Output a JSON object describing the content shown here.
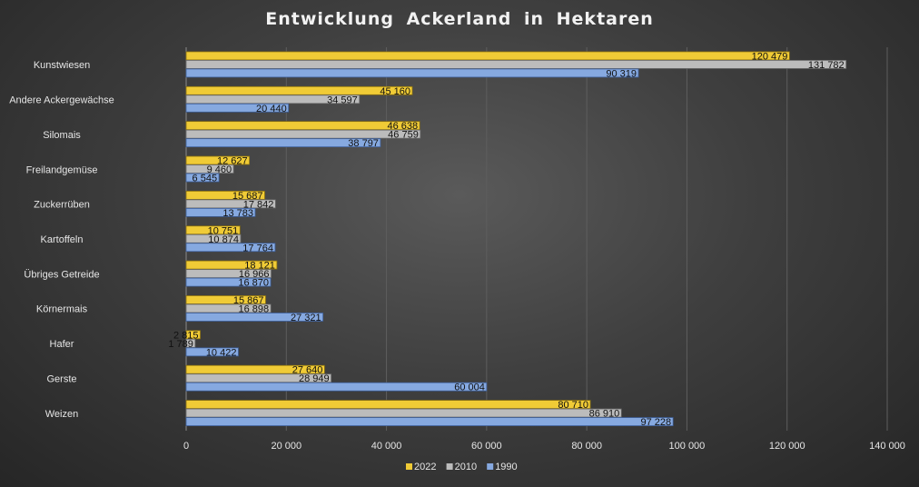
{
  "chart_data": {
    "type": "bar",
    "orientation": "horizontal",
    "title": "Entwicklung Ackerland in Hektaren",
    "xlabel": "",
    "ylabel": "",
    "xlim": [
      0,
      140000
    ],
    "x_ticks": [
      0,
      20000,
      40000,
      60000,
      80000,
      100000,
      120000,
      140000
    ],
    "x_tick_labels": [
      "0",
      "20 000",
      "40 000",
      "60 000",
      "80 000",
      "100 000",
      "120 000",
      "140 000"
    ],
    "grid": true,
    "legend_position": "bottom",
    "categories": [
      "Kunstwiesen",
      "Andere Ackergewächse",
      "Silomais",
      "Freilandgemüse",
      "Zuckerrüben",
      "Kartoffeln",
      "Übriges Getreide",
      "Körnermais",
      "Hafer",
      "Gerste",
      "Weizen"
    ],
    "series": [
      {
        "name": "2022",
        "color": "#f0cb36",
        "edge": "#8a7010",
        "values": [
          120479,
          45160,
          46638,
          12627,
          15687,
          10751,
          18121,
          15867,
          2815,
          27640,
          80710
        ],
        "labels": [
          "120 479",
          "45 160",
          "46 638",
          "12 627",
          "15 687",
          "10 751",
          "18 121",
          "15 867",
          "2 815",
          "27 640",
          "80 710"
        ]
      },
      {
        "name": "2010",
        "color": "#bcbcbc",
        "edge": "#6a6a6a",
        "values": [
          131782,
          34597,
          46759,
          9460,
          17842,
          10874,
          16966,
          16898,
          1789,
          28949,
          86910
        ],
        "labels": [
          "131 782",
          "34 597",
          "46 759",
          "9 460",
          "17 842",
          "10 874",
          "16 966",
          "16 898",
          "1 789",
          "28 949",
          "86 910"
        ]
      },
      {
        "name": "1990",
        "color": "#86a9e0",
        "edge": "#3d5f9a",
        "values": [
          90319,
          20440,
          38797,
          6545,
          13783,
          17764,
          16870,
          27321,
          10422,
          60004,
          97228
        ],
        "labels": [
          "90 319",
          "20 440",
          "38 797",
          "6 545",
          "13 783",
          "17 764",
          "16 870",
          "27 321",
          "10 422",
          "60 004",
          "97 228"
        ]
      }
    ]
  }
}
